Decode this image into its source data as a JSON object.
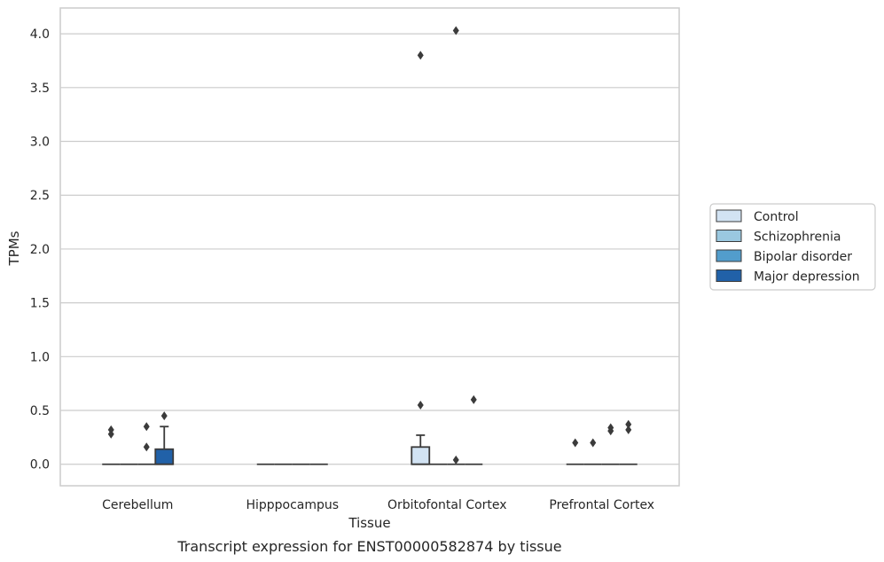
{
  "caption": "Transcript expression for ENST00000582874 by tissue",
  "chart_data": {
    "type": "box",
    "xlabel": "Tissue",
    "ylabel": "TPMs",
    "ylim": [
      -0.2,
      4.24
    ],
    "yticks": [
      0.0,
      0.5,
      1.0,
      1.5,
      2.0,
      2.5,
      3.0,
      3.5,
      4.0
    ],
    "ytick_labels": [
      "0.0",
      "0.5",
      "1.0",
      "1.5",
      "2.0",
      "2.5",
      "3.0",
      "3.5",
      "4.0"
    ],
    "grid": "horizontal",
    "legend_position": "right",
    "categories": [
      "Cerebellum",
      "Hipppocampus",
      "Orbitofontal Cortex",
      "Prefrontal Cortex"
    ],
    "series": [
      {
        "name": "Control",
        "color": "#d2e3f3",
        "boxes": [
          {
            "q1": 0,
            "median": 0,
            "q3": 0,
            "whisker_low": 0,
            "whisker_high": 0,
            "outliers": [
              0.32,
              0.28
            ]
          },
          {
            "q1": 0,
            "median": 0,
            "q3": 0,
            "whisker_low": 0,
            "whisker_high": 0,
            "outliers": []
          },
          {
            "q1": 0,
            "median": 0,
            "q3": 0.16,
            "whisker_low": 0,
            "whisker_high": 0.27,
            "outliers": [
              3.8,
              0.55
            ]
          },
          {
            "q1": 0,
            "median": 0,
            "q3": 0,
            "whisker_low": 0,
            "whisker_high": 0,
            "outliers": [
              0.2
            ]
          }
        ]
      },
      {
        "name": "Schizophrenia",
        "color": "#9ac8e0",
        "boxes": [
          {
            "q1": 0,
            "median": 0,
            "q3": 0,
            "whisker_low": 0,
            "whisker_high": 0,
            "outliers": []
          },
          {
            "q1": 0,
            "median": 0,
            "q3": 0,
            "whisker_low": 0,
            "whisker_high": 0,
            "outliers": []
          },
          {
            "q1": 0,
            "median": 0,
            "q3": 0,
            "whisker_low": 0,
            "whisker_high": 0,
            "outliers": []
          },
          {
            "q1": 0,
            "median": 0,
            "q3": 0,
            "whisker_low": 0,
            "whisker_high": 0,
            "outliers": [
              0.2
            ]
          }
        ]
      },
      {
        "name": "Bipolar disorder",
        "color": "#529dcc",
        "boxes": [
          {
            "q1": 0,
            "median": 0,
            "q3": 0,
            "whisker_low": 0,
            "whisker_high": 0,
            "outliers": [
              0.35,
              0.16
            ]
          },
          {
            "q1": 0,
            "median": 0,
            "q3": 0,
            "whisker_low": 0,
            "whisker_high": 0,
            "outliers": []
          },
          {
            "q1": 0,
            "median": 0,
            "q3": 0,
            "whisker_low": 0,
            "whisker_high": 0,
            "outliers": [
              4.03,
              0.04
            ]
          },
          {
            "q1": 0,
            "median": 0,
            "q3": 0,
            "whisker_low": 0,
            "whisker_high": 0,
            "outliers": [
              0.34,
              0.31
            ]
          }
        ]
      },
      {
        "name": "Major depression",
        "color": "#2161a8",
        "boxes": [
          {
            "q1": 0,
            "median": 0,
            "q3": 0.14,
            "whisker_low": 0,
            "whisker_high": 0.35,
            "outliers": [
              0.45
            ]
          },
          {
            "q1": 0,
            "median": 0,
            "q3": 0,
            "whisker_low": 0,
            "whisker_high": 0,
            "outliers": []
          },
          {
            "q1": 0,
            "median": 0,
            "q3": 0,
            "whisker_low": 0,
            "whisker_high": 0,
            "outliers": [
              0.6
            ]
          },
          {
            "q1": 0,
            "median": 0,
            "q3": 0,
            "whisker_low": 0,
            "whisker_high": 0,
            "outliers": [
              0.37,
              0.32
            ]
          }
        ]
      }
    ]
  }
}
